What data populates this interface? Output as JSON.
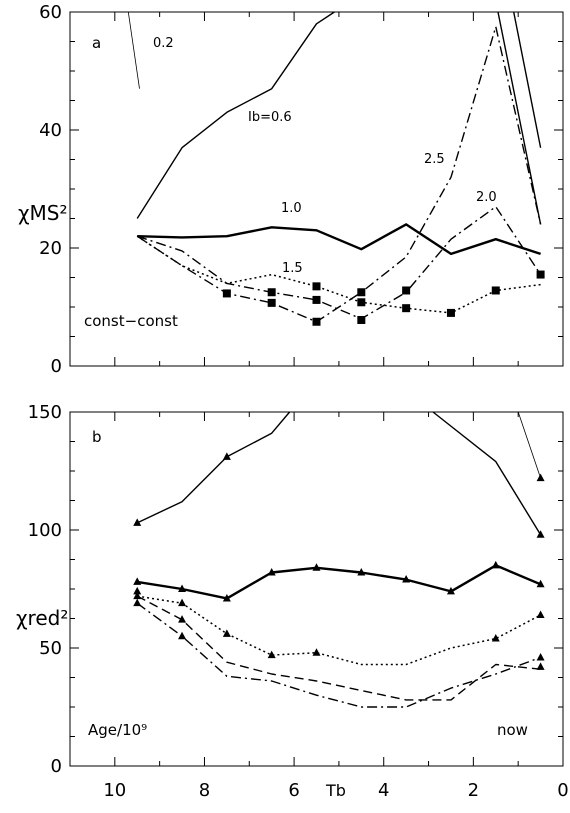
{
  "chart_data": [
    {
      "type": "line",
      "panel_label": "a",
      "xlim": [
        11,
        0
      ],
      "ylim": [
        0,
        60
      ],
      "yticks": [
        0,
        20,
        40,
        60
      ],
      "ylabel": "χMS²",
      "annotations": [
        {
          "text": "const−const"
        },
        {
          "text": "Ib=0.6"
        },
        {
          "text": "0.2"
        },
        {
          "text": "1.0"
        },
        {
          "text": "1.5"
        },
        {
          "text": "2.0"
        },
        {
          "text": "2.5"
        }
      ],
      "series": [
        {
          "id": "s02",
          "style": "thin-solid",
          "x": [
            9.7,
            9.45
          ],
          "y": [
            60,
            47
          ]
        },
        {
          "id": "s06",
          "style": "solid",
          "x": [
            9.5,
            8.5,
            7.5,
            6.5,
            5.5,
            5.1
          ],
          "y": [
            25,
            37,
            43,
            47,
            58,
            60
          ]
        },
        {
          "id": "s06b",
          "style": "solid",
          "x": [
            1.1,
            0.5
          ],
          "y": [
            60,
            37
          ]
        },
        {
          "id": "s10",
          "style": "thick-solid",
          "x": [
            9.5,
            8.5,
            7.5,
            6.5,
            5.5,
            4.5,
            3.5,
            2.5,
            1.5,
            0.5
          ],
          "y": [
            22,
            21.8,
            22,
            23.5,
            23,
            19.8,
            24,
            19,
            21.5,
            19
          ]
        },
        {
          "id": "s15",
          "style": "dotted",
          "marker": "square",
          "x": [
            9.5,
            8.5,
            7.5,
            6.5,
            5.5,
            4.5,
            3.5,
            2.5,
            1.5,
            0.5
          ],
          "y": [
            22,
            17,
            14,
            15.5,
            13.5,
            10.8,
            9.8,
            9,
            12.8,
            13.8
          ]
        },
        {
          "id": "s20",
          "style": "dash-dot",
          "marker": "square",
          "x": [
            9.5,
            8.5,
            7.5,
            6.5,
            5.5,
            4.5,
            3.5,
            2.5,
            1.5,
            0.5
          ],
          "y": [
            22,
            19.5,
            14,
            12.5,
            11.2,
            8,
            12.5,
            21.5,
            27,
            15.5
          ]
        },
        {
          "id": "s25",
          "style": "dash-dot",
          "marker": "square",
          "x": [
            9.5,
            8.5,
            7.5,
            6.5,
            5.5,
            4.5,
            3.5,
            2.5,
            1.5,
            0.5
          ],
          "y": [
            22,
            17,
            12.3,
            10.7,
            7.5,
            12.5,
            18.5,
            32,
            57.5,
            24
          ]
        },
        {
          "id": "s25b",
          "style": "solid",
          "x": [
            1.45,
            0.5
          ],
          "y": [
            60,
            24
          ]
        }
      ],
      "markers": [
        {
          "x": 7.5,
          "y": 12.3
        },
        {
          "x": 6.5,
          "y": 10.7
        },
        {
          "x": 6.5,
          "y": 12.5
        },
        {
          "x": 5.5,
          "y": 13.5
        },
        {
          "x": 5.5,
          "y": 11.2
        },
        {
          "x": 5.5,
          "y": 7.5
        },
        {
          "x": 4.5,
          "y": 12.5
        },
        {
          "x": 4.5,
          "y": 10.8
        },
        {
          "x": 4.5,
          "y": 7.8
        },
        {
          "x": 3.5,
          "y": 12.8
        },
        {
          "x": 3.5,
          "y": 9.8
        },
        {
          "x": 2.5,
          "y": 9.0
        },
        {
          "x": 1.5,
          "y": 12.8
        },
        {
          "x": 0.5,
          "y": 15.5
        }
      ]
    },
    {
      "type": "line",
      "panel_label": "b",
      "xlim": [
        11,
        0
      ],
      "ylim": [
        0,
        150
      ],
      "xticks": [
        10,
        8,
        6,
        4,
        2,
        0
      ],
      "yticks": [
        0,
        50,
        100,
        150
      ],
      "xlabel": "Tb",
      "ylabel": "χred²",
      "annotations": [
        {
          "text": "Age/10⁹"
        },
        {
          "text": "now"
        }
      ],
      "series": [
        {
          "id": "b06",
          "style": "solid",
          "marker": "triangle",
          "x": [
            9.5,
            8.5,
            7.5,
            6.5,
            6.1
          ],
          "y": [
            103,
            112,
            131,
            141,
            150
          ]
        },
        {
          "id": "b06b",
          "style": "solid",
          "marker": "triangle",
          "x": [
            2.9,
            1.5,
            0.5
          ],
          "y": [
            150,
            129,
            98
          ]
        },
        {
          "id": "b02",
          "style": "thin-solid",
          "marker": "triangle",
          "x": [
            1.0,
            0.5
          ],
          "y": [
            150,
            122
          ]
        },
        {
          "id": "b10",
          "style": "thick-solid",
          "marker": "triangle",
          "x": [
            9.5,
            8.5,
            7.5,
            6.5,
            5.5,
            4.5,
            3.5,
            2.5,
            1.5,
            0.5
          ],
          "y": [
            78,
            75,
            71,
            82,
            84,
            82,
            79,
            74,
            85,
            77
          ]
        },
        {
          "id": "b15",
          "style": "dotted",
          "marker": "triangle",
          "x": [
            9.5,
            8.5,
            7.5,
            6.5,
            5.5,
            4.5,
            3.5,
            2.5,
            1.5,
            0.5
          ],
          "y": [
            72,
            69,
            56,
            47,
            48,
            43,
            43,
            50,
            54,
            64
          ]
        },
        {
          "id": "b20",
          "style": "dashed",
          "marker": "triangle",
          "x": [
            9.5,
            8.5,
            7.5,
            6.5,
            5.5,
            4.5,
            3.5,
            2.5,
            1.5,
            0.5
          ],
          "y": [
            72,
            62,
            44,
            39,
            36,
            32,
            28,
            28,
            43,
            41
          ]
        },
        {
          "id": "b25",
          "style": "dash-dot",
          "marker": "triangle",
          "x": [
            9.5,
            8.5,
            7.5,
            6.5,
            5.5,
            4.5,
            3.5,
            2.5,
            1.5,
            0.5
          ],
          "y": [
            69,
            55,
            38,
            36,
            30,
            25,
            25,
            33,
            39,
            46
          ]
        }
      ],
      "markers": [
        {
          "x": 9.5,
          "y": 103
        },
        {
          "x": 7.5,
          "y": 131
        },
        {
          "x": 0.5,
          "y": 98
        },
        {
          "x": 0.5,
          "y": 122
        },
        {
          "x": 9.5,
          "y": 78
        },
        {
          "x": 8.5,
          "y": 75
        },
        {
          "x": 7.5,
          "y": 71
        },
        {
          "x": 6.5,
          "y": 82
        },
        {
          "x": 5.5,
          "y": 84
        },
        {
          "x": 4.5,
          "y": 82
        },
        {
          "x": 3.5,
          "y": 79
        },
        {
          "x": 2.5,
          "y": 74
        },
        {
          "x": 1.5,
          "y": 85
        },
        {
          "x": 0.5,
          "y": 77
        },
        {
          "x": 9.5,
          "y": 74
        },
        {
          "x": 9.5,
          "y": 72
        },
        {
          "x": 9.5,
          "y": 69
        },
        {
          "x": 8.5,
          "y": 69
        },
        {
          "x": 8.5,
          "y": 62
        },
        {
          "x": 8.5,
          "y": 55
        },
        {
          "x": 7.5,
          "y": 56
        },
        {
          "x": 6.5,
          "y": 47
        },
        {
          "x": 5.5,
          "y": 48
        },
        {
          "x": 1.5,
          "y": 54
        },
        {
          "x": 0.5,
          "y": 64
        },
        {
          "x": 0.5,
          "y": 46
        },
        {
          "x": 0.5,
          "y": 42
        }
      ]
    }
  ]
}
